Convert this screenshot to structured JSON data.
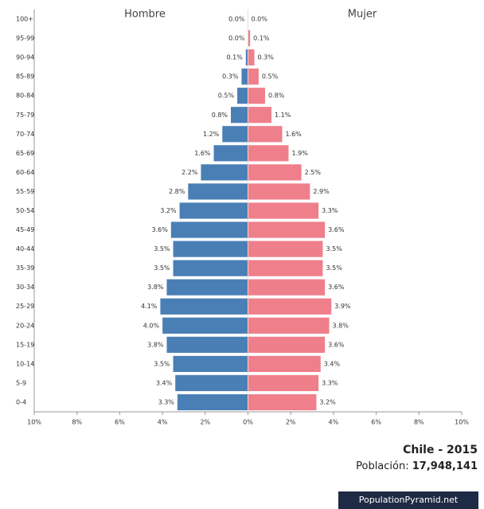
{
  "chart_data": {
    "type": "pyramid",
    "title": "Chile - 2015",
    "population_label": "Población:",
    "population": "17,948,141",
    "source": "PopulationPyramid.net",
    "categories": [
      "100+",
      "95-99",
      "90-94",
      "85-89",
      "80-84",
      "75-79",
      "70-74",
      "65-69",
      "60-64",
      "55-59",
      "50-54",
      "45-49",
      "40-44",
      "35-39",
      "30-34",
      "25-29",
      "20-24",
      "15-19",
      "10-14",
      "5-9",
      "0-4"
    ],
    "series": [
      {
        "name": "Hombre",
        "color": "#4a7fb6",
        "side": "left",
        "values": [
          0.0,
          0.0,
          0.1,
          0.3,
          0.5,
          0.8,
          1.2,
          1.6,
          2.2,
          2.8,
          3.2,
          3.6,
          3.5,
          3.5,
          3.8,
          4.1,
          4.0,
          3.8,
          3.5,
          3.4,
          3.3
        ],
        "value_labels": [
          "0.0%",
          "0.0%",
          "0.1%",
          "0.3%",
          "0.5%",
          "0.8%",
          "1.2%",
          "1.6%",
          "2.2%",
          "2.8%",
          "3.2%",
          "3.6%",
          "3.5%",
          "3.5%",
          "3.8%",
          "4.1%",
          "4.0%",
          "3.8%",
          "3.5%",
          "3.4%",
          "3.3%"
        ]
      },
      {
        "name": "Mujer",
        "color": "#ef7f8b",
        "side": "right",
        "values": [
          0.0,
          0.1,
          0.3,
          0.5,
          0.8,
          1.1,
          1.6,
          1.9,
          2.5,
          2.9,
          3.3,
          3.6,
          3.5,
          3.5,
          3.6,
          3.9,
          3.8,
          3.6,
          3.4,
          3.3,
          3.2
        ],
        "value_labels": [
          "0.0%",
          "0.1%",
          "0.3%",
          "0.5%",
          "0.8%",
          "1.1%",
          "1.6%",
          "1.9%",
          "2.5%",
          "2.9%",
          "3.3%",
          "3.6%",
          "3.5%",
          "3.5%",
          "3.6%",
          "3.9%",
          "3.8%",
          "3.6%",
          "3.4%",
          "3.3%",
          "3.2%"
        ]
      }
    ],
    "xlim": [
      -10,
      10
    ],
    "xticks": [
      {
        "value": -10,
        "label": "10%"
      },
      {
        "value": -8,
        "label": "8%"
      },
      {
        "value": -6,
        "label": "6%"
      },
      {
        "value": -4,
        "label": "4%"
      },
      {
        "value": -2,
        "label": "2%"
      },
      {
        "value": 0,
        "label": "0%"
      },
      {
        "value": 2,
        "label": "2%"
      },
      {
        "value": 4,
        "label": "4%"
      },
      {
        "value": 6,
        "label": "6%"
      },
      {
        "value": 8,
        "label": "8%"
      },
      {
        "value": 10,
        "label": "10%"
      }
    ]
  }
}
